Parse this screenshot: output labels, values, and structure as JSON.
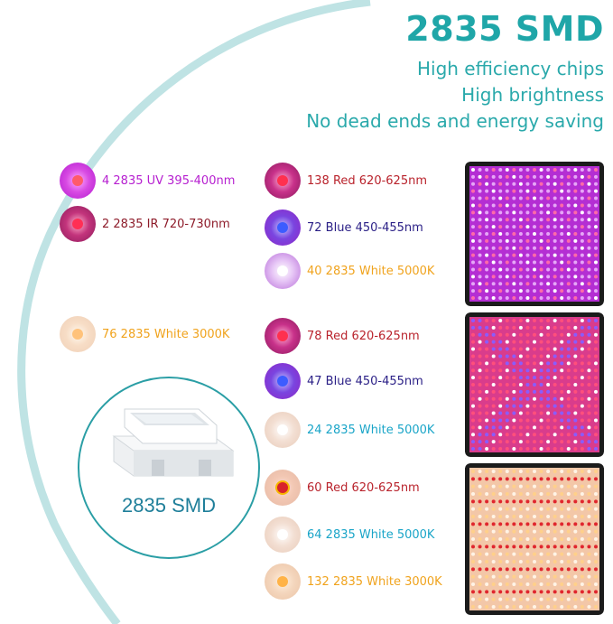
{
  "header": {
    "title": "2835 SMD",
    "lines": [
      "High efficiency chips",
      "High brightness",
      "No dead ends and energy saving"
    ]
  },
  "colors": {
    "accent": "#1fa6a8",
    "uv": "#b61fd0",
    "ir": "#8e1c2a",
    "red": "#b9232c",
    "blue": "#2a1f86",
    "white_5000k": "#1aa5c8",
    "white_3000k": "#f0a31d"
  },
  "leds": [
    {
      "label": "4 2835 UV 395-400nm"
    },
    {
      "label": "2 2835 IR 720-730nm"
    },
    {
      "label": "138 Red 620-625nm"
    },
    {
      "label": "72 Blue 450-455nm"
    },
    {
      "label": "40 2835 White 5000K"
    },
    {
      "label": "76 2835 White 3000K"
    },
    {
      "label": "78 Red 620-625nm"
    },
    {
      "label": "47 Blue 450-455nm"
    },
    {
      "label": "24 2835 White 5000K"
    },
    {
      "label": "60 Red 620-625nm"
    },
    {
      "label": "64 2835 White 5000K"
    },
    {
      "label": "132 2835 White 3000K"
    }
  ],
  "chip": {
    "caption": "2835 SMD"
  }
}
